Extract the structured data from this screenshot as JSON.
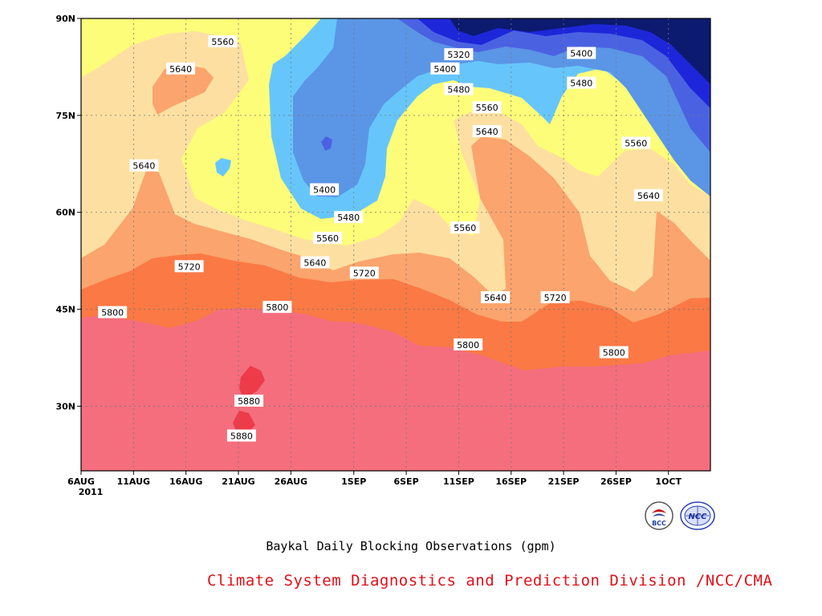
{
  "chart_data": {
    "type": "contour",
    "title": "Baykal Daily Blocking Observations (gpm)",
    "credit": "Climate System Diagnostics and Prediction Division /NCC/CMA",
    "y_axis": {
      "range": [
        20,
        90
      ],
      "ticks": [
        {
          "value": 90,
          "label": "90N"
        },
        {
          "value": 75,
          "label": "75N"
        },
        {
          "value": 60,
          "label": "60N"
        },
        {
          "value": 45,
          "label": "45N"
        },
        {
          "value": 30,
          "label": "30N"
        }
      ]
    },
    "x_axis": {
      "range_days": [
        0,
        60
      ],
      "ticks": [
        {
          "day": 0,
          "label": "6AUG",
          "sublabel": "2011"
        },
        {
          "day": 5,
          "label": "11AUG"
        },
        {
          "day": 10,
          "label": "16AUG"
        },
        {
          "day": 15,
          "label": "21AUG"
        },
        {
          "day": 20,
          "label": "26AUG"
        },
        {
          "day": 26,
          "label": "1SEP"
        },
        {
          "day": 31,
          "label": "6SEP"
        },
        {
          "day": 36,
          "label": "11SEP"
        },
        {
          "day": 41,
          "label": "16SEP"
        },
        {
          "day": 46,
          "label": "21SEP"
        },
        {
          "day": 51,
          "label": "26SEP"
        },
        {
          "day": 56,
          "label": "1OCT"
        }
      ]
    },
    "grid": "dotted",
    "contour_levels": [
      5320,
      5400,
      5480,
      5560,
      5640,
      5720,
      5800,
      5880
    ],
    "fill_colors": {
      "below_5320": "#0c1a70",
      "5320_5400": "#1d27d9",
      "5400_5480": "#4a62e2",
      "5480_5560": "#5b95e6",
      "5560_5640": "#66c6fb",
      "5640_5720": "#fdfd79",
      "5720_5800": "#fde0a1",
      "5800_5880": "#fba46d",
      "above_5880": "#ed3b4a"
    },
    "contour_labels": [
      {
        "text": "5560",
        "day": 13.5,
        "lat": 86.4
      },
      {
        "text": "5640",
        "day": 9.5,
        "lat": 82.2
      },
      {
        "text": "5640",
        "day": 6.0,
        "lat": 67.2
      },
      {
        "text": "5320",
        "day": 36.0,
        "lat": 84.4
      },
      {
        "text": "5400",
        "day": 34.7,
        "lat": 82.2
      },
      {
        "text": "5400",
        "day": 47.7,
        "lat": 84.6
      },
      {
        "text": "5480",
        "day": 36.0,
        "lat": 79.0
      },
      {
        "text": "5480",
        "day": 47.7,
        "lat": 80.0
      },
      {
        "text": "5560",
        "day": 38.7,
        "lat": 76.2
      },
      {
        "text": "5560",
        "day": 52.9,
        "lat": 70.7
      },
      {
        "text": "5640",
        "day": 38.7,
        "lat": 72.5
      },
      {
        "text": "5640",
        "day": 54.1,
        "lat": 62.6
      },
      {
        "text": "5400",
        "day": 23.2,
        "lat": 63.5
      },
      {
        "text": "5480",
        "day": 25.5,
        "lat": 59.2
      },
      {
        "text": "5560",
        "day": 23.5,
        "lat": 56.0
      },
      {
        "text": "5560",
        "day": 36.6,
        "lat": 57.6
      },
      {
        "text": "5640",
        "day": 22.3,
        "lat": 52.2
      },
      {
        "text": "5720",
        "day": 10.3,
        "lat": 51.6
      },
      {
        "text": "5720",
        "day": 27.0,
        "lat": 50.6
      },
      {
        "text": "5640",
        "day": 39.5,
        "lat": 46.8
      },
      {
        "text": "5720",
        "day": 45.2,
        "lat": 46.8
      },
      {
        "text": "5800",
        "day": 3.0,
        "lat": 44.5
      },
      {
        "text": "5800",
        "day": 18.7,
        "lat": 45.3
      },
      {
        "text": "5800",
        "day": 36.9,
        "lat": 39.5
      },
      {
        "text": "5800",
        "day": 50.8,
        "lat": 38.3
      },
      {
        "text": "5880",
        "day": 16.0,
        "lat": 30.8
      },
      {
        "text": "5880",
        "day": 15.3,
        "lat": 25.4
      }
    ]
  },
  "logos": [
    {
      "name": "bcc-logo",
      "text": "BCC"
    },
    {
      "name": "ncc-logo",
      "text": "NCC"
    }
  ]
}
